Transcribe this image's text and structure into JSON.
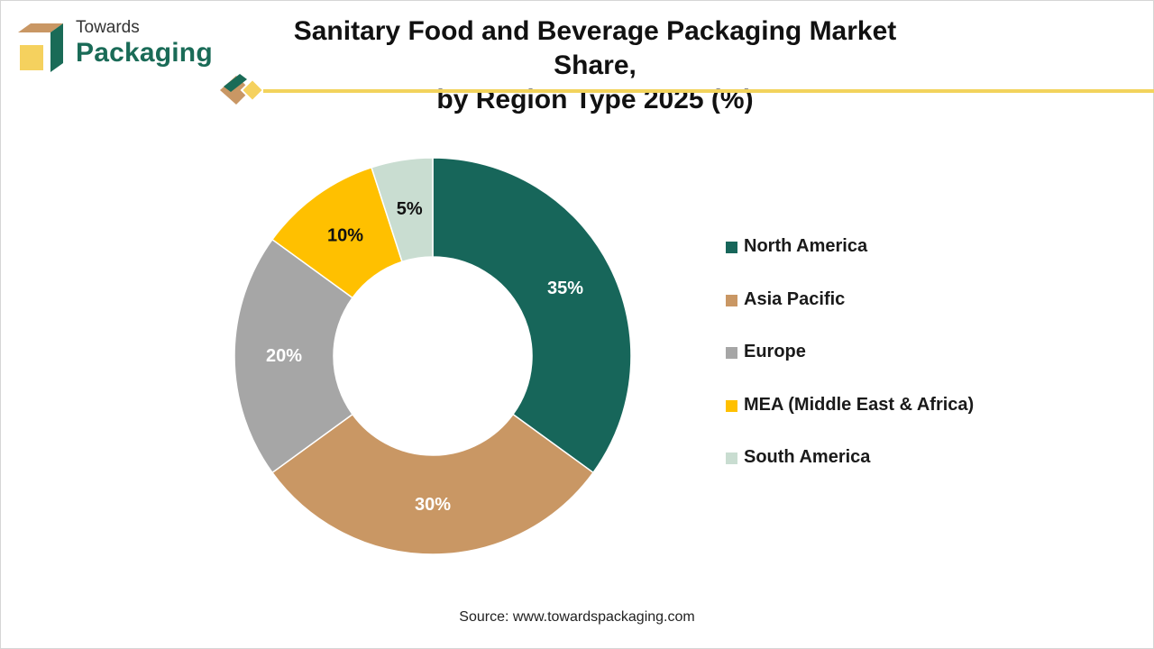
{
  "brand": {
    "name_line1": "Towards",
    "name_line2": "Packaging",
    "icon": "box-logo-icon"
  },
  "header": {
    "title_line1": "Sanitary Food and Beverage Packaging Market Share,",
    "title_line2": "by Region Type 2025 (%)"
  },
  "colors": {
    "north_america": "#17665a",
    "asia_pacific": "#c99764",
    "europe": "#a6a6a6",
    "mea": "#ffc000",
    "south_america": "#c9ddd1",
    "accent_line": "#f2d35c"
  },
  "chart_data": {
    "type": "pie",
    "title": "Sanitary Food and Beverage Packaging Market Share, by Region Type 2025 (%)",
    "donut": true,
    "legend_position": "right",
    "categories": [
      "North America",
      "Asia Pacific",
      "Europe",
      "MEA (Middle East & Africa)",
      "South America"
    ],
    "values": [
      35,
      30,
      20,
      10,
      5
    ],
    "data_labels": [
      "35%",
      "30%",
      "20%",
      "10%",
      "5%"
    ],
    "colors": [
      "#17665a",
      "#c99764",
      "#a6a6a6",
      "#ffc000",
      "#c9ddd1"
    ],
    "label_colors": [
      "#ffffff",
      "#ffffff",
      "#ffffff",
      "#111111",
      "#111111"
    ]
  },
  "footer": {
    "source": "Source: www.towardspackaging.com"
  }
}
